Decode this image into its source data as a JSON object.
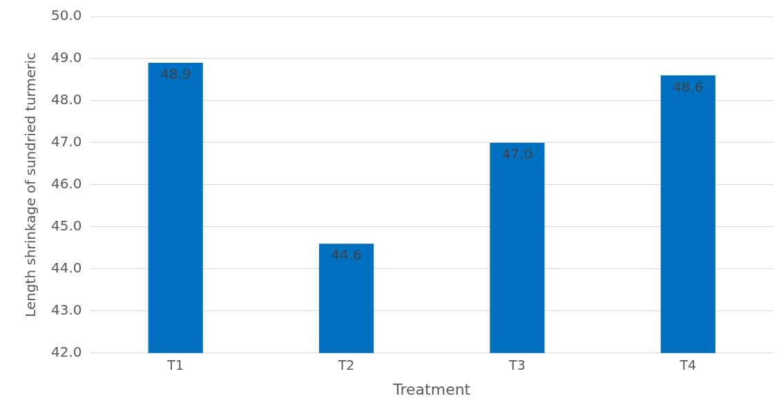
{
  "chart_data": {
    "type": "bar",
    "xlabel": "Treatment",
    "ylabel": "Length shrinkage of sundried turmeric",
    "categories": [
      "T1",
      "T2",
      "T3",
      "T4"
    ],
    "values": [
      48.9,
      44.6,
      47.0,
      48.6
    ],
    "value_labels": [
      "48.9",
      "44.6",
      "47.0",
      "48.6"
    ],
    "color": "#0070c0",
    "ylim": [
      42,
      50
    ],
    "yticks": [
      {
        "value": 42,
        "label": "42.0"
      },
      {
        "value": 43,
        "label": "43.0"
      },
      {
        "value": 44,
        "label": "44.0"
      },
      {
        "value": 45,
        "label": "45.0"
      },
      {
        "value": 46,
        "label": "46.0"
      },
      {
        "value": 47,
        "label": "47.0"
      },
      {
        "value": 48,
        "label": "48.0"
      },
      {
        "value": 49,
        "label": "49.0"
      },
      {
        "value": 50,
        "label": "50.0"
      }
    ],
    "grid": "y",
    "legend": false
  }
}
